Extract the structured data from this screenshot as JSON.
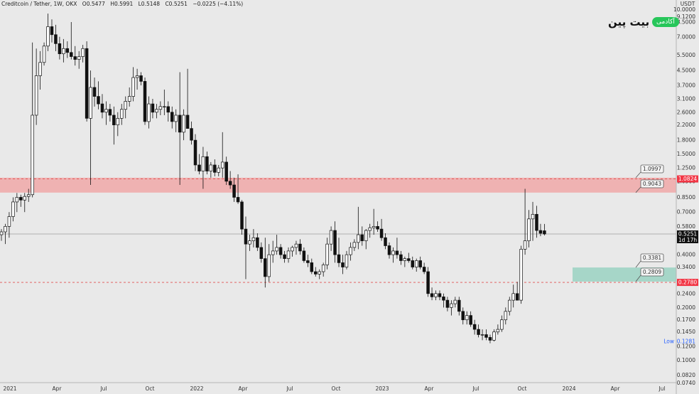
{
  "header": {
    "symbol": "Creditcoin / Tether, 1W, OKX",
    "open": "O0.5477",
    "high": "H0.5991",
    "low": "L0.5148",
    "close": "C0.5251",
    "change": "−0.0225 (−4.11%)"
  },
  "logo": {
    "text": "بیت پین",
    "pill": "آکادمی"
  },
  "colors": {
    "background": "#e9e9e9",
    "resistance_zone": "#f0a8a8",
    "support_zone": "#9fd4c4",
    "red_label": "#f23645",
    "candle": "#111111",
    "price_line": "#7a7a7a"
  },
  "chart_data": {
    "type": "candlestick",
    "title": "",
    "y_scale": "log",
    "y_currency": "USDT",
    "y_ticks": [
      "10.0000",
      "9.1200",
      "8.5000",
      "7.0000",
      "5.5000",
      "4.5000",
      "3.7000",
      "3.1000",
      "2.6000",
      "2.2000",
      "1.8000",
      "1.5000",
      "1.2500",
      "1.0500",
      "0.8500",
      "0.7000",
      "0.5800",
      "0.4800",
      "0.4000",
      "0.3400",
      "0.2800",
      "0.2400",
      "0.2000",
      "0.1700",
      "0.1450",
      "0.1200",
      "0.1000",
      "0.0820",
      "0.0740"
    ],
    "x_ticks": [
      "2021",
      "Apr",
      "Jul",
      "Oct",
      "2022",
      "Apr",
      "Jul",
      "Oct",
      "2023",
      "Apr",
      "Jul",
      "Oct",
      "2024",
      "Apr",
      "Jul"
    ],
    "candles_weekly": [
      [
        0.52,
        0.56,
        0.48,
        0.54
      ],
      [
        0.54,
        0.6,
        0.46,
        0.58
      ],
      [
        0.58,
        0.7,
        0.5,
        0.66
      ],
      [
        0.66,
        0.85,
        0.62,
        0.8
      ],
      [
        0.8,
        0.9,
        0.7,
        0.85
      ],
      [
        0.85,
        0.88,
        0.75,
        0.82
      ],
      [
        0.82,
        0.9,
        0.7,
        0.86
      ],
      [
        0.86,
        0.95,
        0.8,
        0.88
      ],
      [
        0.88,
        6.5,
        0.85,
        2.5
      ],
      [
        2.5,
        6.0,
        2.2,
        4.2
      ],
      [
        4.2,
        5.8,
        3.5,
        5.0
      ],
      [
        5.0,
        6.5,
        4.8,
        6.2
      ],
      [
        6.2,
        9.5,
        5.8,
        8.0
      ],
      [
        8.0,
        8.8,
        6.5,
        7.2
      ],
      [
        7.2,
        8.2,
        5.8,
        6.4
      ],
      [
        6.4,
        7.0,
        5.2,
        5.6
      ],
      [
        5.6,
        6.8,
        5.0,
        6.0
      ],
      [
        6.0,
        6.6,
        5.3,
        5.7
      ],
      [
        5.7,
        8.5,
        5.2,
        5.4
      ],
      [
        5.4,
        6.2,
        4.8,
        5.2
      ],
      [
        5.2,
        5.8,
        4.6,
        5.4
      ],
      [
        5.4,
        6.3,
        5.0,
        6.0
      ],
      [
        6.0,
        6.6,
        2.3,
        2.4
      ],
      [
        2.4,
        4.5,
        1.0,
        3.6
      ],
      [
        3.6,
        4.1,
        2.8,
        3.2
      ],
      [
        3.2,
        3.9,
        2.7,
        2.9
      ],
      [
        2.9,
        3.3,
        2.4,
        2.6
      ],
      [
        2.6,
        3.0,
        2.2,
        2.7
      ],
      [
        2.7,
        2.9,
        2.3,
        2.5
      ],
      [
        2.5,
        2.8,
        1.7,
        2.2
      ],
      [
        2.2,
        2.6,
        1.9,
        2.4
      ],
      [
        2.4,
        2.9,
        2.2,
        2.7
      ],
      [
        2.7,
        3.2,
        2.4,
        3.0
      ],
      [
        3.0,
        3.6,
        2.8,
        3.2
      ],
      [
        3.2,
        4.7,
        3.0,
        4.1
      ],
      [
        4.1,
        4.6,
        3.5,
        4.2
      ],
      [
        4.2,
        4.4,
        3.7,
        3.9
      ],
      [
        3.9,
        4.1,
        2.2,
        2.3
      ],
      [
        2.3,
        3.2,
        2.1,
        2.9
      ],
      [
        2.9,
        3.1,
        2.4,
        2.6
      ],
      [
        2.6,
        2.9,
        2.4,
        2.7
      ],
      [
        2.7,
        3.0,
        2.5,
        2.8
      ],
      [
        2.8,
        3.5,
        2.5,
        2.8
      ],
      [
        2.8,
        3.0,
        2.3,
        2.6
      ],
      [
        2.6,
        2.8,
        2.1,
        2.3
      ],
      [
        2.3,
        2.7,
        2.0,
        2.5
      ],
      [
        2.5,
        4.4,
        1.0,
        2.0
      ],
      [
        2.0,
        2.7,
        1.8,
        2.5
      ],
      [
        2.5,
        4.6,
        2.3,
        2.1
      ],
      [
        2.1,
        2.3,
        1.7,
        1.8
      ],
      [
        1.8,
        1.95,
        1.2,
        1.3
      ],
      [
        1.3,
        1.5,
        1.15,
        1.2
      ],
      [
        1.2,
        1.65,
        0.95,
        1.45
      ],
      [
        1.45,
        1.55,
        1.15,
        1.2
      ],
      [
        1.2,
        1.35,
        1.1,
        1.3
      ],
      [
        1.3,
        1.4,
        1.12,
        1.18
      ],
      [
        1.18,
        1.3,
        1.12,
        1.25
      ],
      [
        1.25,
        2.0,
        1.1,
        1.35
      ],
      [
        1.35,
        1.45,
        1.0,
        1.05
      ],
      [
        1.05,
        1.2,
        0.95,
        1.0
      ],
      [
        1.0,
        1.1,
        0.8,
        0.85
      ],
      [
        0.85,
        1.15,
        0.78,
        0.8
      ],
      [
        0.8,
        0.82,
        0.52,
        0.56
      ],
      [
        0.56,
        0.66,
        0.29,
        0.46
      ],
      [
        0.46,
        0.52,
        0.42,
        0.48
      ],
      [
        0.48,
        0.56,
        0.44,
        0.5
      ],
      [
        0.5,
        0.53,
        0.42,
        0.44
      ],
      [
        0.44,
        0.47,
        0.36,
        0.38
      ],
      [
        0.38,
        0.5,
        0.26,
        0.3
      ],
      [
        0.3,
        0.46,
        0.28,
        0.4
      ],
      [
        0.4,
        0.48,
        0.36,
        0.42
      ],
      [
        0.42,
        0.52,
        0.4,
        0.44
      ],
      [
        0.44,
        0.46,
        0.38,
        0.4
      ],
      [
        0.4,
        0.42,
        0.36,
        0.38
      ],
      [
        0.38,
        0.44,
        0.36,
        0.42
      ],
      [
        0.42,
        0.45,
        0.39,
        0.44
      ],
      [
        0.44,
        0.48,
        0.4,
        0.46
      ],
      [
        0.46,
        0.49,
        0.4,
        0.42
      ],
      [
        0.42,
        0.44,
        0.36,
        0.37
      ],
      [
        0.37,
        0.4,
        0.34,
        0.36
      ],
      [
        0.36,
        0.38,
        0.31,
        0.32
      ],
      [
        0.32,
        0.34,
        0.3,
        0.31
      ],
      [
        0.31,
        0.33,
        0.29,
        0.32
      ],
      [
        0.32,
        0.36,
        0.3,
        0.35
      ],
      [
        0.35,
        0.5,
        0.33,
        0.46
      ],
      [
        0.46,
        0.58,
        0.42,
        0.55
      ],
      [
        0.55,
        0.62,
        0.36,
        0.4
      ],
      [
        0.4,
        0.5,
        0.34,
        0.36
      ],
      [
        0.36,
        0.4,
        0.31,
        0.34
      ],
      [
        0.34,
        0.42,
        0.33,
        0.4
      ],
      [
        0.4,
        0.47,
        0.37,
        0.44
      ],
      [
        0.44,
        0.49,
        0.42,
        0.47
      ],
      [
        0.47,
        0.75,
        0.43,
        0.52
      ],
      [
        0.52,
        0.58,
        0.45,
        0.48
      ],
      [
        0.48,
        0.56,
        0.43,
        0.55
      ],
      [
        0.55,
        0.6,
        0.5,
        0.57
      ],
      [
        0.57,
        0.73,
        0.52,
        0.58
      ],
      [
        0.58,
        0.62,
        0.54,
        0.56
      ],
      [
        0.56,
        0.64,
        0.48,
        0.5
      ],
      [
        0.5,
        0.53,
        0.43,
        0.45
      ],
      [
        0.45,
        0.47,
        0.38,
        0.4
      ],
      [
        0.4,
        0.44,
        0.36,
        0.42
      ],
      [
        0.42,
        0.5,
        0.38,
        0.4
      ],
      [
        0.4,
        0.42,
        0.35,
        0.37
      ],
      [
        0.37,
        0.39,
        0.34,
        0.38
      ],
      [
        0.38,
        0.41,
        0.36,
        0.37
      ],
      [
        0.37,
        0.39,
        0.33,
        0.34
      ],
      [
        0.34,
        0.38,
        0.32,
        0.37
      ],
      [
        0.37,
        0.39,
        0.33,
        0.34
      ],
      [
        0.34,
        0.36,
        0.31,
        0.32
      ],
      [
        0.32,
        0.34,
        0.23,
        0.24
      ],
      [
        0.24,
        0.26,
        0.22,
        0.23
      ],
      [
        0.23,
        0.25,
        0.22,
        0.24
      ],
      [
        0.24,
        0.25,
        0.22,
        0.23
      ],
      [
        0.23,
        0.24,
        0.2,
        0.22
      ],
      [
        0.22,
        0.23,
        0.19,
        0.2
      ],
      [
        0.2,
        0.22,
        0.18,
        0.21
      ],
      [
        0.21,
        0.23,
        0.2,
        0.22
      ],
      [
        0.22,
        0.23,
        0.18,
        0.19
      ],
      [
        0.19,
        0.2,
        0.16,
        0.17
      ],
      [
        0.17,
        0.19,
        0.16,
        0.18
      ],
      [
        0.18,
        0.19,
        0.155,
        0.16
      ],
      [
        0.16,
        0.17,
        0.14,
        0.15
      ],
      [
        0.15,
        0.16,
        0.135,
        0.14
      ],
      [
        0.14,
        0.15,
        0.13,
        0.14
      ],
      [
        0.14,
        0.15,
        0.13,
        0.135
      ],
      [
        0.135,
        0.14,
        0.125,
        0.13
      ],
      [
        0.13,
        0.15,
        0.128,
        0.145
      ],
      [
        0.145,
        0.16,
        0.14,
        0.15
      ],
      [
        0.15,
        0.18,
        0.145,
        0.17
      ],
      [
        0.17,
        0.2,
        0.16,
        0.19
      ],
      [
        0.19,
        0.23,
        0.18,
        0.22
      ],
      [
        0.22,
        0.27,
        0.2,
        0.24
      ],
      [
        0.24,
        0.28,
        0.22,
        0.22
      ],
      [
        0.22,
        0.45,
        0.21,
        0.43
      ],
      [
        0.43,
        0.95,
        0.4,
        0.48
      ],
      [
        0.48,
        0.72,
        0.44,
        0.64
      ],
      [
        0.64,
        0.8,
        0.48,
        0.68
      ],
      [
        0.68,
        0.76,
        0.5,
        0.55
      ],
      [
        0.55,
        0.6,
        0.51,
        0.53
      ],
      [
        0.5477,
        0.5991,
        0.5148,
        0.5251
      ]
    ],
    "zones": {
      "resistance_low": 0.9043,
      "resistance_high": 1.0997,
      "support_low": 0.2809,
      "support_high": 0.3381
    },
    "zone_labels": [
      "1.0997",
      "0.9043",
      "0.3381",
      "0.2809"
    ],
    "dashed_levels": {
      "upper": "1.0824",
      "lower": "0.2780"
    },
    "current_price": "0.5251",
    "countdown": "1d 17h",
    "low_marker": {
      "label": "Low",
      "value": "0.1281"
    }
  }
}
